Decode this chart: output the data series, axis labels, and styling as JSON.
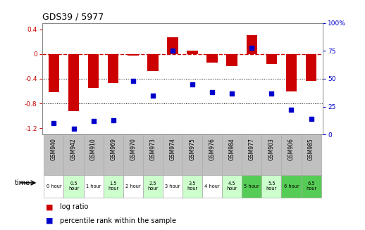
{
  "title": "GDS39 / 5977",
  "samples": [
    "GSM940",
    "GSM942",
    "GSM910",
    "GSM969",
    "GSM970",
    "GSM973",
    "GSM974",
    "GSM975",
    "GSM976",
    "GSM984",
    "GSM977",
    "GSM903",
    "GSM906",
    "GSM985"
  ],
  "time_labels": [
    "0 hour",
    "0.5\nhour",
    "1 hour",
    "1.5\nhour",
    "2 hour",
    "2.5\nhour",
    "3 hour",
    "3.5\nhour",
    "4 hour",
    "4.5\nhour",
    "5 hour",
    "5.5\nhour",
    "6 hour",
    "6.5\nhour"
  ],
  "log_ratio": [
    -0.62,
    -0.92,
    -0.55,
    -0.47,
    -0.03,
    -0.28,
    0.27,
    0.05,
    -0.14,
    -0.2,
    0.3,
    -0.16,
    -0.6,
    -0.43
  ],
  "percentile": [
    10,
    5,
    12,
    13,
    48,
    35,
    75,
    45,
    38,
    37,
    78,
    37,
    22,
    14
  ],
  "ylim_left": [
    -1.3,
    0.5
  ],
  "ylim_right": [
    0,
    100
  ],
  "bar_color": "#cc0000",
  "dot_color": "#0000cc",
  "line_color": "#cc0000",
  "bg_color": "#ffffff",
  "grid_color": "#000000",
  "header_bg": "#c0c0c0",
  "time_bg": [
    "#ffffff",
    "#ccffcc",
    "#ffffff",
    "#ccffcc",
    "#ffffff",
    "#ccffcc",
    "#ffffff",
    "#ccffcc",
    "#ffffff",
    "#ccffcc",
    "#55cc55",
    "#ccffcc",
    "#55cc55",
    "#55cc55"
  ],
  "legend_bar_color": "#cc0000",
  "legend_dot_color": "#0000cc"
}
